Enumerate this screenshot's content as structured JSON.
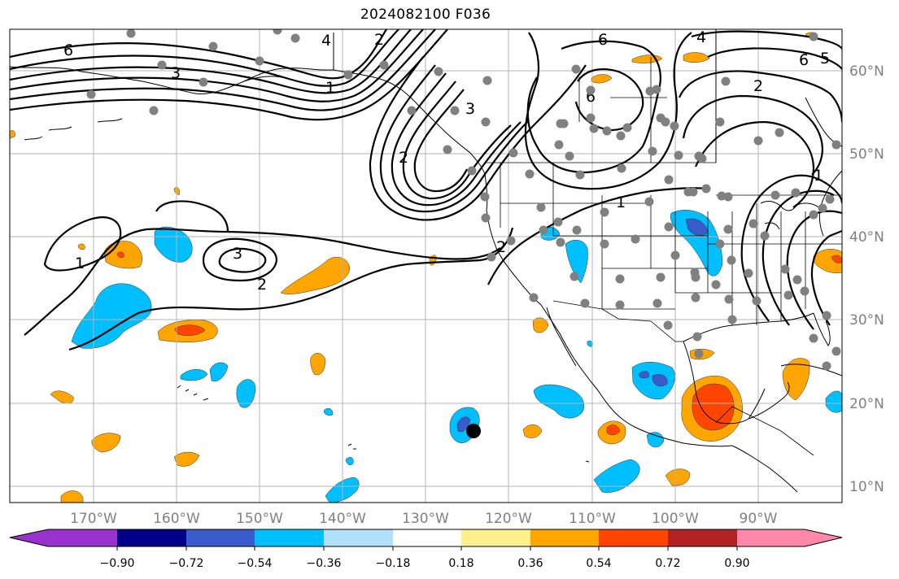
{
  "title": "2024082100 F036",
  "colors": {
    "neg_100": "#9932cc",
    "neg_90": "#00008b",
    "neg_72": "#3a5bcc",
    "neg_54": "#00bfff",
    "neg_36": "#b0e0fa",
    "zero": "#ffffff",
    "pos_18": "#fff08c",
    "pos_36": "#ffa500",
    "pos_54": "#ff4500",
    "pos_72": "#b22222",
    "pos_90": "#ff88aa",
    "station": "#808080",
    "contour": "#000000",
    "grid": "#b4b4b4"
  },
  "lon_labels": [
    "170°W",
    "160°W",
    "150°W",
    "140°W",
    "130°W",
    "120°W",
    "110°W",
    "100°W",
    "90°W"
  ],
  "lat_labels": [
    "60°N",
    "50°N",
    "40°N",
    "30°N",
    "20°N",
    "10°N"
  ],
  "colorbar_ticks": [
    "−0.90",
    "−0.72",
    "−0.54",
    "−0.36",
    "−0.18",
    "0.18",
    "0.36",
    "0.54",
    "0.72",
    "0.90"
  ],
  "contour_labels": [
    "6",
    "2",
    "4",
    "1",
    "3",
    "6",
    "3",
    "1",
    "2",
    "3",
    "2",
    "2",
    "1",
    "6",
    "4",
    "6",
    "5",
    "2",
    "1"
  ],
  "icons": {
    "storm_center": "storm-center-icon",
    "station": "station-dot-icon"
  }
}
